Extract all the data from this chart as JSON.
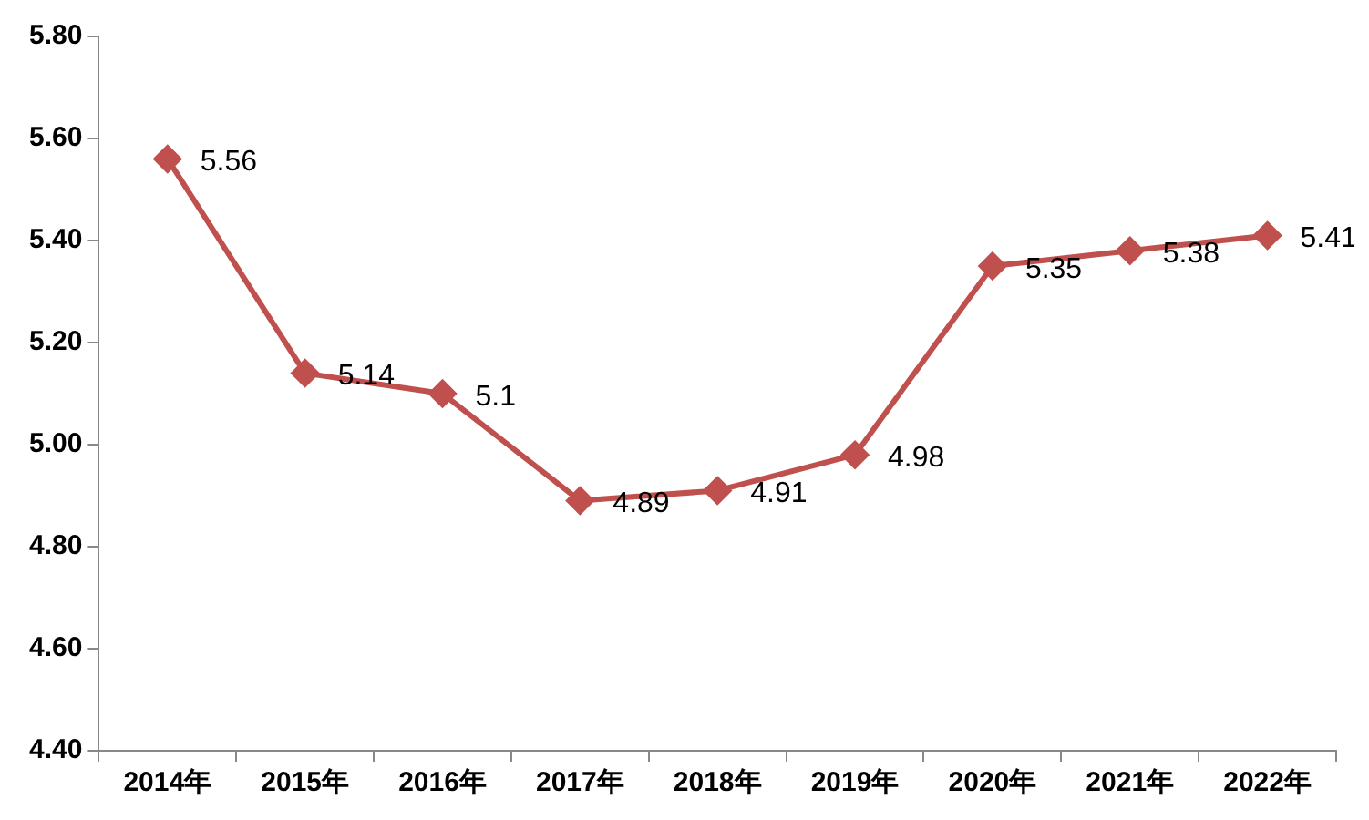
{
  "chart_data": {
    "type": "line",
    "categories": [
      "2014年",
      "2015年",
      "2016年",
      "2017年",
      "2018年",
      "2019年",
      "2020年",
      "2021年",
      "2022年"
    ],
    "series": [
      {
        "color": "#c0504d",
        "values": [
          5.56,
          5.14,
          5.1,
          4.89,
          4.91,
          4.98,
          5.35,
          5.38,
          5.41
        ]
      }
    ],
    "ylim": [
      4.4,
      5.8
    ],
    "yticks": [
      {
        "value": 4.4,
        "label": "4.40"
      },
      {
        "value": 4.6,
        "label": "4.60"
      },
      {
        "value": 4.8,
        "label": "4.80"
      },
      {
        "value": 5.0,
        "label": "5.00"
      },
      {
        "value": 5.2,
        "label": "5.20"
      },
      {
        "value": 5.4,
        "label": "5.40"
      },
      {
        "value": 5.6,
        "label": "5.60"
      },
      {
        "value": 5.8,
        "label": "5.80"
      }
    ],
    "data_labels": true,
    "marker": "diamond",
    "line_style": "solid",
    "legend": false
  }
}
